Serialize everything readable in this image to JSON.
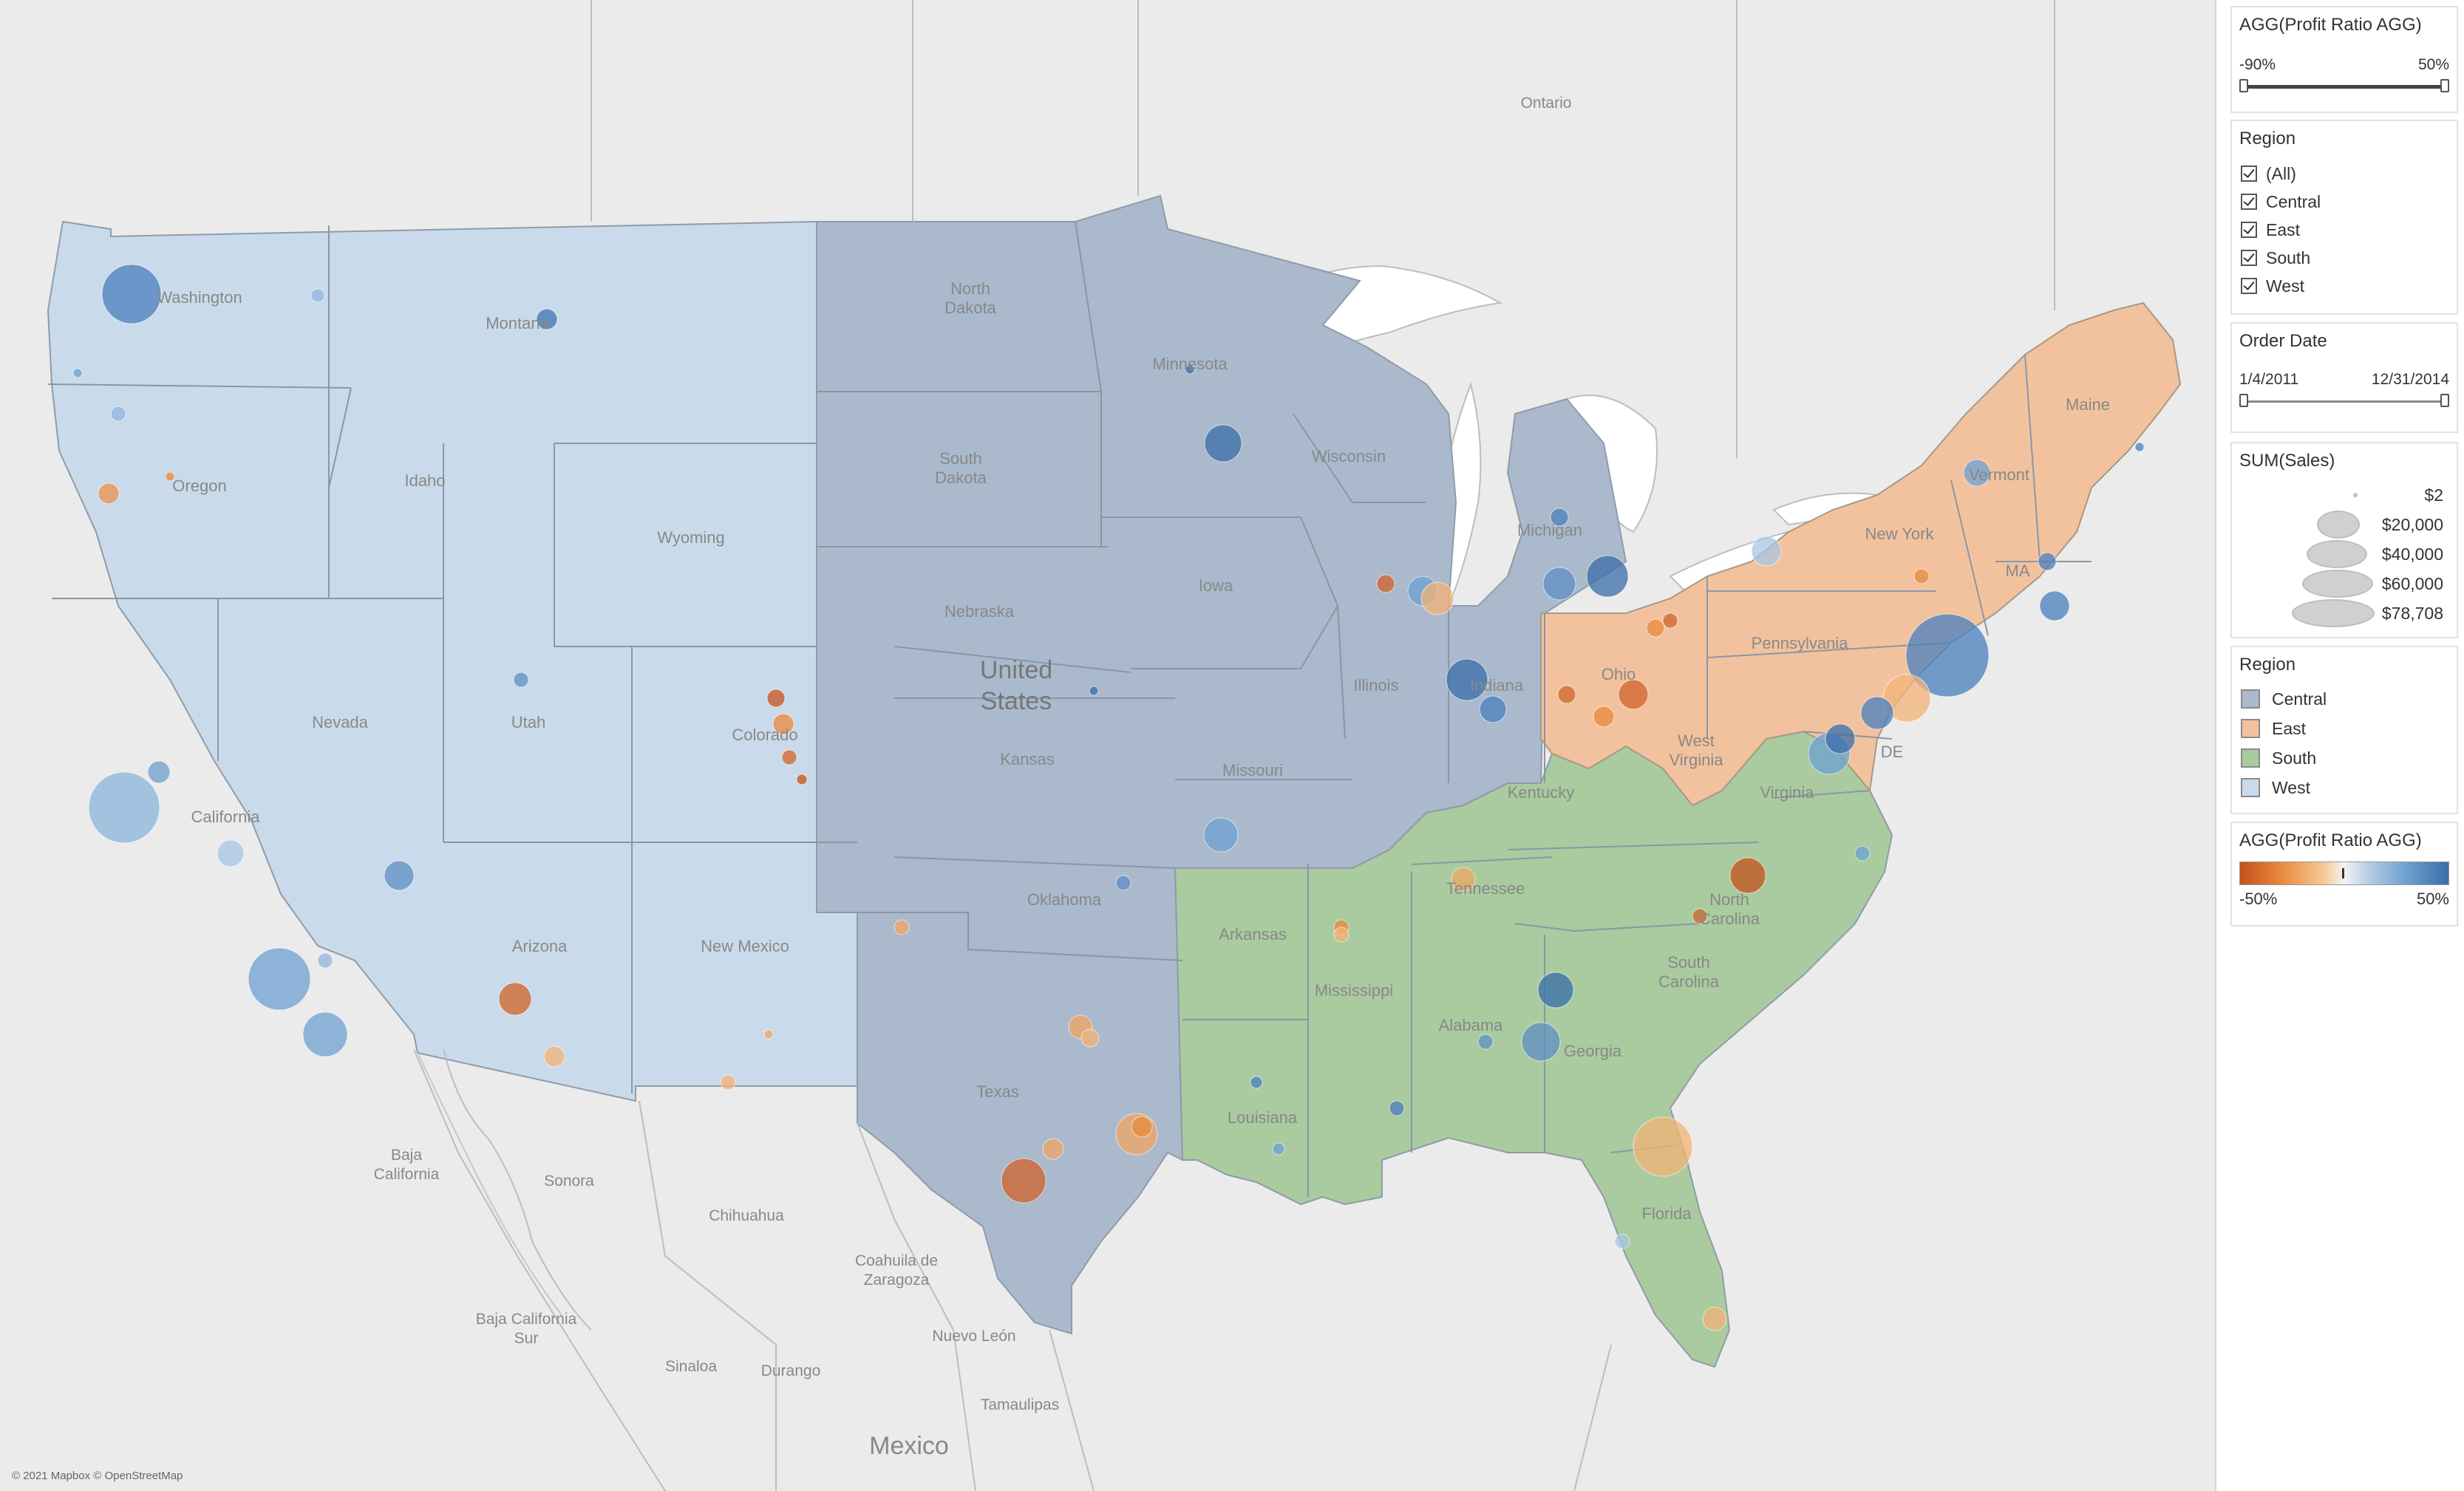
{
  "map": {
    "attribution": "© 2021 Mapbox © OpenStreetMap",
    "country_label": "United States",
    "country_labels_other": [
      "Mexico"
    ],
    "region_colors": {
      "Central": "#aab9cc",
      "East": "#f2c29e",
      "South": "#a9cb9f",
      "West": "#c9dbea"
    },
    "state_labels": [
      {
        "name": "Washington"
      },
      {
        "name": "Montana"
      },
      {
        "name": "Oregon"
      },
      {
        "name": "Idaho"
      },
      {
        "name": "Wyoming"
      },
      {
        "name": "Nevada"
      },
      {
        "name": "Utah"
      },
      {
        "name": "Colorado"
      },
      {
        "name": "California"
      },
      {
        "name": "Arizona"
      },
      {
        "name": "New Mexico"
      },
      {
        "name": "North Dakota"
      },
      {
        "name": "South Dakota"
      },
      {
        "name": "Nebraska"
      },
      {
        "name": "Kansas"
      },
      {
        "name": "Oklahoma"
      },
      {
        "name": "Texas"
      },
      {
        "name": "Minnesota"
      },
      {
        "name": "Iowa"
      },
      {
        "name": "Missouri"
      },
      {
        "name": "Arkansas"
      },
      {
        "name": "Louisiana"
      },
      {
        "name": "Wisconsin"
      },
      {
        "name": "Illinois"
      },
      {
        "name": "Michigan"
      },
      {
        "name": "Indiana"
      },
      {
        "name": "Ohio"
      },
      {
        "name": "Kentucky"
      },
      {
        "name": "Tennessee"
      },
      {
        "name": "Mississippi"
      },
      {
        "name": "Alabama"
      },
      {
        "name": "Georgia"
      },
      {
        "name": "Florida"
      },
      {
        "name": "South Carolina"
      },
      {
        "name": "North Carolina"
      },
      {
        "name": "Virginia"
      },
      {
        "name": "West Virginia"
      },
      {
        "name": "Pennsylvania"
      },
      {
        "name": "New York"
      },
      {
        "name": "Vermont"
      },
      {
        "name": "Maine"
      },
      {
        "name": "MA"
      },
      {
        "name": "DE"
      }
    ],
    "place_labels": [
      "Ontario",
      "Baja California",
      "Sonora",
      "Chihuahua",
      "Coahuila de Zaragoza",
      "Baja California Sur",
      "Sinaloa",
      "Durango",
      "Nuevo León",
      "Tamaulipas"
    ]
  },
  "filters": {
    "profit_ratio": {
      "title": "AGG(Profit Ratio AGG)",
      "min_label": "-90%",
      "max_label": "50%"
    },
    "region": {
      "title": "Region",
      "options": [
        "(All)",
        "Central",
        "East",
        "South",
        "West"
      ]
    },
    "order_date": {
      "title": "Order Date",
      "start": "1/4/2011",
      "end": "12/31/2014"
    }
  },
  "legends": {
    "sales": {
      "title": "SUM(Sales)",
      "entries": [
        "$2",
        "$20,000",
        "$40,000",
        "$60,000",
        "$78,708"
      ]
    },
    "region": {
      "title": "Region",
      "entries": [
        {
          "label": "Central",
          "color": "#aab9cc"
        },
        {
          "label": "East",
          "color": "#f2c29e"
        },
        {
          "label": "South",
          "color": "#a9cb9f"
        },
        {
          "label": "West",
          "color": "#c9dbea"
        }
      ]
    },
    "profit_ratio": {
      "title": "AGG(Profit Ratio AGG)",
      "min_label": "-50%",
      "max_label": "50%"
    }
  }
}
